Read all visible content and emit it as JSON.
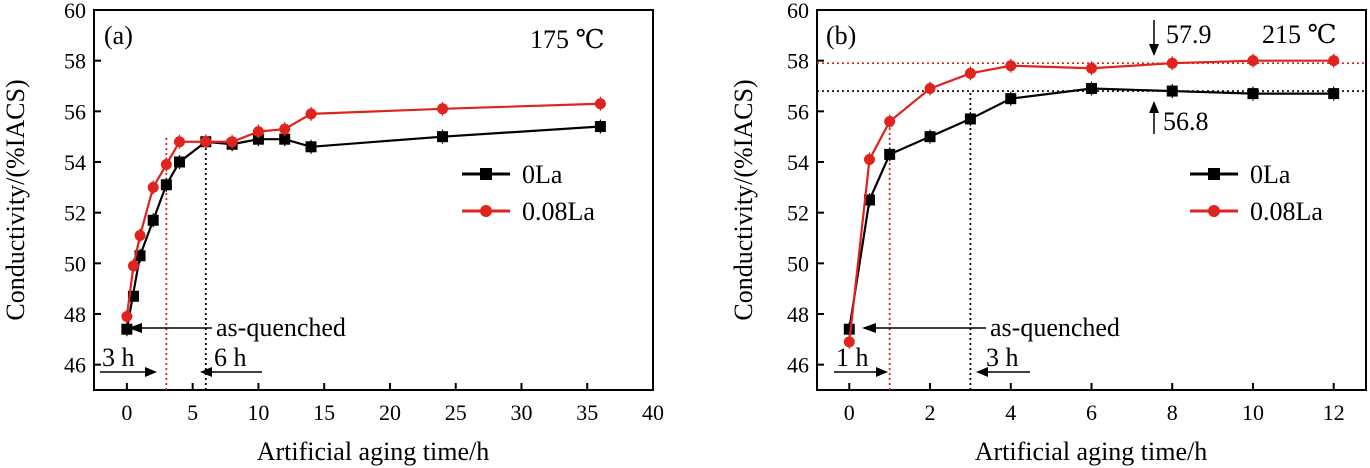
{
  "chart_data": [
    {
      "type": "line",
      "panel_label": "(a)",
      "temperature_label": "175 ℃",
      "xlabel": "Artificial aging time/h",
      "ylabel": "Conductivity/(%IACS)",
      "xlim": [
        -2.5,
        40
      ],
      "ylim": [
        45,
        60
      ],
      "xticks": [
        0,
        5,
        10,
        15,
        20,
        25,
        30,
        35,
        40
      ],
      "yticks": [
        46,
        48,
        50,
        52,
        54,
        56,
        58,
        60
      ],
      "legend_position": "right",
      "series": [
        {
          "name": "0La",
          "color": "#000000",
          "marker": "square",
          "x": [
            0,
            1,
            2,
            3,
            4,
            6,
            8,
            10,
            12,
            14,
            24,
            36
          ],
          "y": [
            47.4,
            50.3,
            51.7,
            53.1,
            54.0,
            54.8,
            54.7,
            54.9,
            54.9,
            54.6,
            55.0,
            55.4
          ],
          "extra_points": [
            {
              "x": 0.5,
              "y": 48.7
            }
          ]
        },
        {
          "name": "0.08La",
          "color": "#e0231c",
          "marker": "circle",
          "x": [
            0,
            0.5,
            1,
            2,
            3,
            4,
            6,
            8,
            10,
            12,
            14,
            24,
            36
          ],
          "y": [
            47.9,
            49.9,
            51.1,
            53.0,
            53.9,
            54.8,
            54.8,
            54.8,
            55.2,
            55.3,
            55.9,
            56.1,
            56.3
          ]
        }
      ],
      "vertical_lines": [
        {
          "x": 3,
          "color": "#e0231c"
        },
        {
          "x": 6,
          "color": "#000000"
        }
      ],
      "annotations": {
        "as_quenched": "as-quenched",
        "left_time": "3 h",
        "right_time": "6 h"
      }
    },
    {
      "type": "line",
      "panel_label": "(b)",
      "temperature_label": "215 ℃",
      "xlabel": "Artificial aging time/h",
      "ylabel": "Conductivity/(%IACS)",
      "xlim": [
        -0.8,
        12.8
      ],
      "ylim": [
        45,
        60
      ],
      "xticks": [
        0,
        2,
        4,
        6,
        8,
        10,
        12
      ],
      "yticks": [
        46,
        48,
        50,
        52,
        54,
        56,
        58,
        60
      ],
      "legend_position": "right",
      "series": [
        {
          "name": "0La",
          "color": "#000000",
          "marker": "square",
          "x": [
            0,
            0.5,
            1,
            2,
            3,
            4,
            6,
            8,
            10,
            12
          ],
          "y": [
            47.4,
            52.5,
            54.3,
            55.0,
            55.7,
            56.5,
            56.9,
            56.8,
            56.7,
            56.7
          ]
        },
        {
          "name": "0.08La",
          "color": "#e0231c",
          "marker": "circle",
          "x": [
            0,
            0.5,
            1,
            2,
            3,
            4,
            6,
            8,
            10,
            12
          ],
          "y": [
            46.9,
            54.1,
            55.6,
            56.9,
            57.5,
            57.8,
            57.7,
            57.9,
            58.0,
            58.0
          ]
        }
      ],
      "horizontal_lines": [
        {
          "y": 57.9,
          "color": "#e0231c",
          "label": "57.9"
        },
        {
          "y": 56.8,
          "color": "#000000",
          "label": "56.8"
        }
      ],
      "vertical_lines": [
        {
          "x": 1,
          "color": "#e0231c"
        },
        {
          "x": 3,
          "color": "#000000"
        }
      ],
      "annotations": {
        "as_quenched": "as-quenched",
        "left_time": "1 h",
        "right_time": "3 h"
      }
    }
  ]
}
